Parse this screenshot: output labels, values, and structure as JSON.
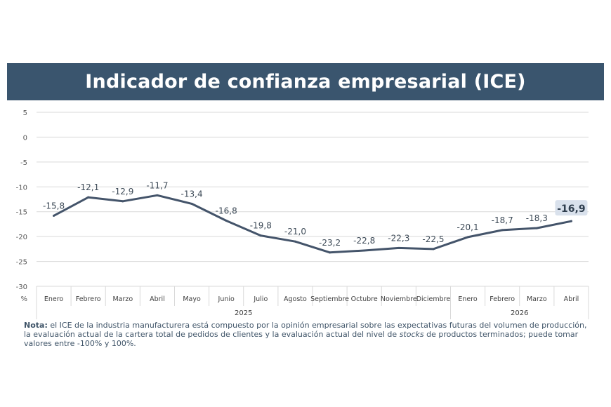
{
  "title": "Indicador de confianza empresarial (ICE)",
  "chart_data": {
    "type": "line",
    "title": "Indicador de confianza empresarial (ICE)",
    "ylabel": "%",
    "ylim": [
      -30,
      5
    ],
    "yticks": [
      5,
      0,
      -5,
      -10,
      -15,
      -20,
      -25,
      -30
    ],
    "grid": true,
    "categories": [
      "Enero",
      "Febrero",
      "Marzo",
      "Abril",
      "Mayo",
      "Junio",
      "Julio",
      "Agosto",
      "Septiembre",
      "Octubre",
      "Noviembre",
      "Diciembre",
      "Enero",
      "Febrero",
      "Marzo",
      "Abril"
    ],
    "years": [
      {
        "label": "2025",
        "from": 0,
        "to": 11
      },
      {
        "label": "2026",
        "from": 12,
        "to": 15
      }
    ],
    "values": [
      -15.8,
      -12.1,
      -12.9,
      -11.7,
      -13.4,
      -16.8,
      -19.8,
      -21.0,
      -23.2,
      -22.8,
      -22.3,
      -22.5,
      -20.1,
      -18.7,
      -18.3,
      -16.9
    ],
    "data_labels": [
      "-15,8",
      "-12,1",
      "-12,9",
      "-11,7",
      "-13,4",
      "-16,8",
      "-19,8",
      "-21,0",
      "-23,2",
      "-22,8",
      "-22,3",
      "-22,5",
      "-20,1",
      "-18,7",
      "-18,3",
      "-16,9"
    ],
    "highlight_last": true,
    "line_color": "#44546a",
    "highlight_bg": "#d9e1ec"
  },
  "note": {
    "label": "Nota:",
    "text_before": " el ICE de la industria manufacturera está compuesto por la opinión empresarial sobre las expectativas futuras del volumen de producción, la evaluación actual de la cartera total de pedidos de clientes y la evaluación actual del nivel de ",
    "emph": "stocks",
    "text_after": " de productos terminados; puede tomar valores entre -100% y 100%."
  }
}
